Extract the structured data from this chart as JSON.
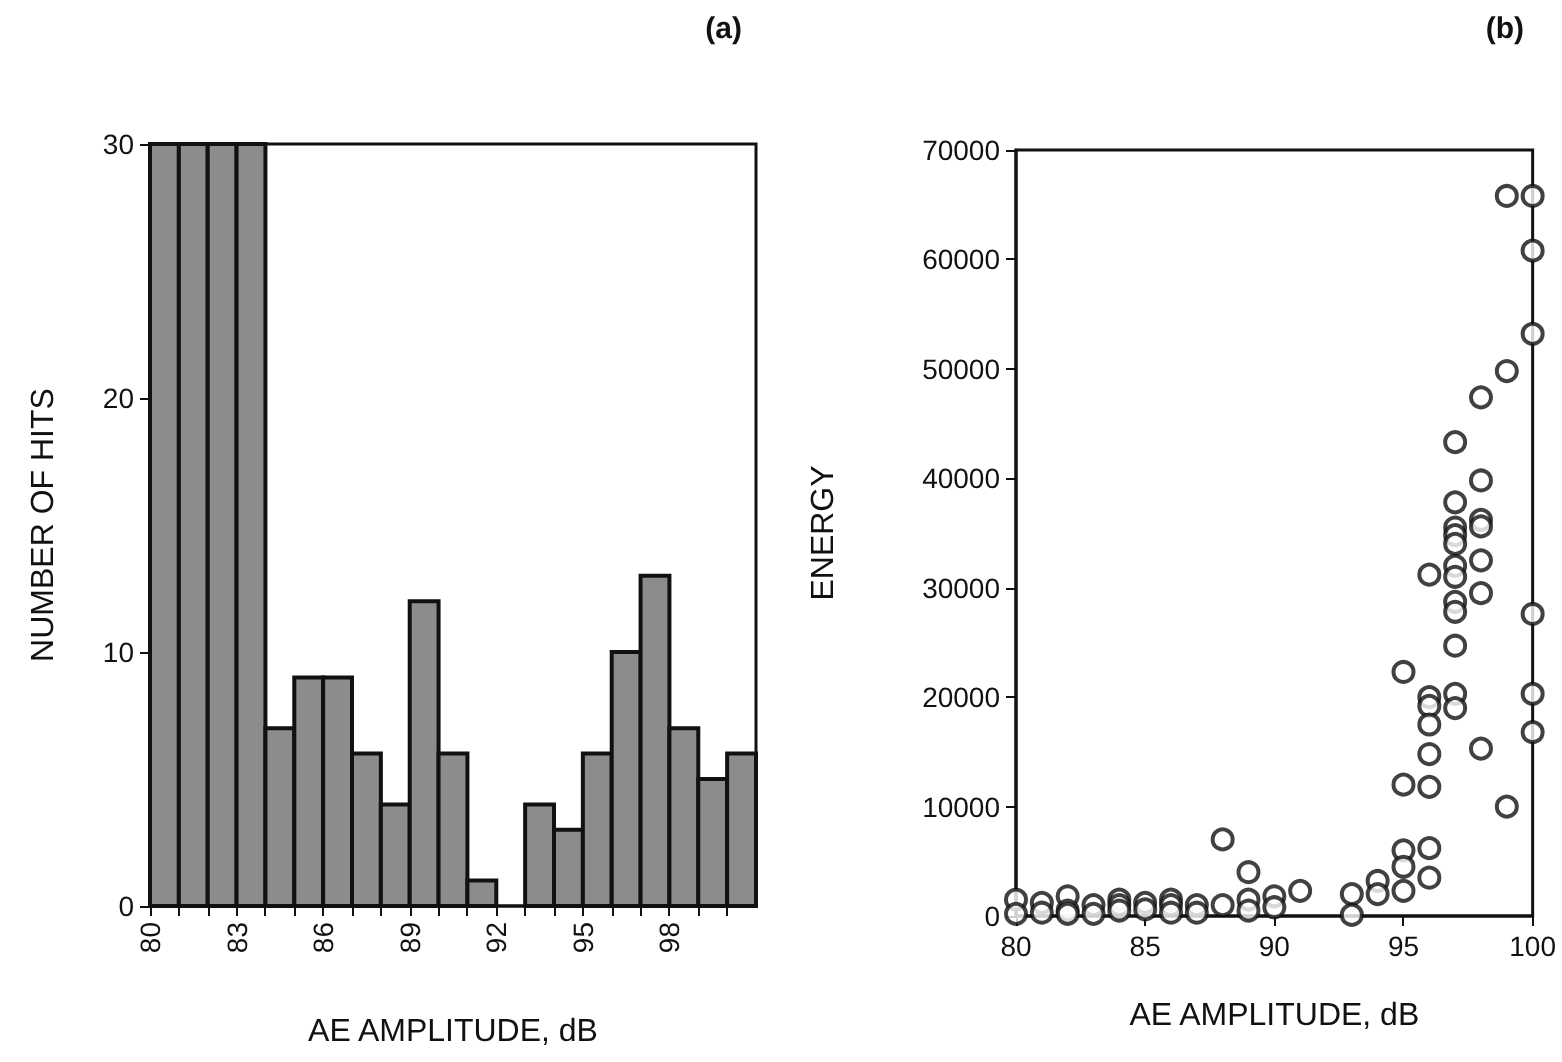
{
  "chart_data": [
    {
      "type": "histogram",
      "title": "(a)",
      "xlabel": "AE AMPLITUDE, dB",
      "ylabel": "NUMBER OF HITS",
      "color": "#8c8c8c",
      "grid": false,
      "bins": [
        80,
        81,
        82,
        83,
        84,
        85,
        86,
        87,
        88,
        89,
        90,
        91,
        92,
        93,
        94,
        95,
        96,
        97,
        98,
        99,
        100,
        101
      ],
      "values": [
        30,
        30,
        30,
        30,
        7,
        9,
        9,
        6,
        4,
        12,
        6,
        1,
        0,
        4,
        3,
        6,
        10,
        13,
        7,
        5,
        6
      ],
      "xlim": [
        80,
        101
      ],
      "xticks": [
        80,
        {
          "value": 81,
          "label": null
        },
        {
          "value": 82,
          "label": null
        },
        83,
        {
          "value": 84,
          "label": null
        },
        {
          "value": 85,
          "label": null
        },
        86,
        {
          "value": 87,
          "label": null
        },
        {
          "value": 88,
          "label": null
        },
        89,
        {
          "value": 90,
          "label": null
        },
        {
          "value": 91,
          "label": null
        },
        92,
        {
          "value": 93,
          "label": null
        },
        {
          "value": 94,
          "label": null
        },
        95,
        {
          "value": 96,
          "label": null
        },
        {
          "value": 97,
          "label": null
        },
        98,
        {
          "value": 99,
          "label": null
        },
        {
          "value": 100,
          "label": null
        }
      ],
      "ylim": [
        0,
        30
      ],
      "yticks": [
        0,
        10,
        20,
        30
      ]
    },
    {
      "type": "scatter",
      "title": "(b)",
      "xlabel": "AE AMPLITUDE, dB",
      "ylabel": "ENERGY",
      "color": "#111111",
      "marker": "circle",
      "grid": false,
      "x": [
        80,
        80,
        81,
        81,
        82,
        82,
        82,
        83,
        83,
        84,
        84,
        84,
        85,
        85,
        86,
        86,
        86,
        87,
        87,
        88,
        88,
        89,
        89,
        89,
        90,
        90,
        91,
        93,
        93,
        94,
        94,
        95,
        95,
        95,
        95,
        95,
        96,
        96,
        96,
        96,
        96,
        96,
        96,
        96,
        97,
        97,
        97,
        97,
        97,
        97,
        97,
        97,
        97,
        97,
        97,
        97,
        98,
        98,
        98,
        98,
        98,
        98,
        98,
        99,
        99,
        99,
        100,
        100,
        100,
        100,
        100,
        100
      ],
      "values": [
        1500,
        200,
        1200,
        300,
        1800,
        500,
        200,
        1000,
        200,
        1500,
        1000,
        500,
        1200,
        600,
        1500,
        1000,
        300,
        1000,
        300,
        7000,
        1000,
        4000,
        1500,
        500,
        1800,
        800,
        2300,
        2000,
        100,
        3200,
        2000,
        22300,
        12000,
        6000,
        4500,
        2300,
        31200,
        20000,
        19200,
        17500,
        14800,
        11800,
        6200,
        3500,
        43300,
        37800,
        35500,
        34800,
        34000,
        32000,
        31000,
        28700,
        27800,
        24700,
        20300,
        19000,
        47400,
        39800,
        36200,
        35600,
        32500,
        29500,
        15300,
        65800,
        49800,
        10000,
        65800,
        60800,
        53200,
        27600,
        20300,
        16800
      ],
      "xlim": [
        80,
        100
      ],
      "xticks": [
        80,
        85,
        90,
        95,
        100
      ],
      "ylim": [
        0,
        70000
      ],
      "yticks": [
        0,
        10000,
        20000,
        30000,
        40000,
        50000,
        60000,
        70000
      ]
    }
  ]
}
